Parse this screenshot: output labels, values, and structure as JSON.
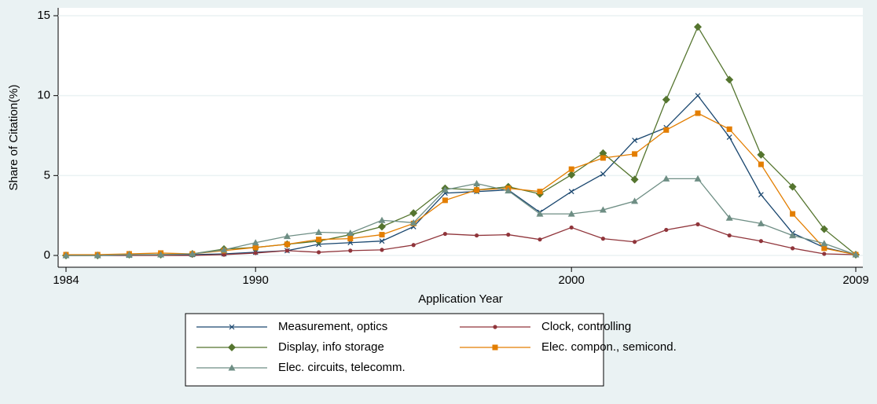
{
  "chart_data": {
    "type": "line",
    "x_label": "Application Year",
    "y_label": "Share of Citation(%)",
    "x": [
      1984,
      1985,
      1986,
      1987,
      1988,
      1989,
      1990,
      1991,
      1992,
      1993,
      1994,
      1995,
      1996,
      1997,
      1998,
      1999,
      2000,
      2001,
      2002,
      2003,
      2004,
      2005,
      2006,
      2007,
      2008,
      2009
    ],
    "xlim": [
      1984,
      2009
    ],
    "xticks": [
      1984,
      1990,
      2000,
      2009
    ],
    "ylim": [
      0,
      15
    ],
    "yticks": [
      0,
      5,
      10,
      15
    ],
    "grid": true,
    "series": [
      {
        "name": "Measurement, optics",
        "color": "#1a476f",
        "marker": "x",
        "values": [
          0,
          0,
          0,
          0.05,
          0.05,
          0.1,
          0.2,
          0.3,
          0.7,
          0.8,
          0.9,
          1.8,
          3.9,
          4.0,
          4.1,
          2.7,
          4.0,
          5.1,
          7.2,
          8.0,
          10.0,
          7.4,
          3.8,
          1.4,
          0.5,
          0.05
        ]
      },
      {
        "name": "Clock, controlling",
        "color": "#90353b",
        "marker": "circle",
        "values": [
          0,
          0,
          0,
          0,
          0,
          0.05,
          0.15,
          0.3,
          0.2,
          0.3,
          0.35,
          0.65,
          1.35,
          1.25,
          1.3,
          1.0,
          1.75,
          1.05,
          0.85,
          1.6,
          1.95,
          1.25,
          0.9,
          0.45,
          0.1,
          0.05
        ]
      },
      {
        "name": "Display, info storage",
        "color": "#55752f",
        "marker": "diamond",
        "values": [
          0,
          0,
          0.05,
          0.05,
          0.1,
          0.4,
          0.5,
          0.7,
          0.9,
          1.3,
          1.8,
          2.65,
          4.2,
          4.1,
          4.3,
          3.85,
          5.05,
          6.4,
          4.75,
          9.75,
          14.3,
          11.0,
          6.3,
          4.3,
          1.65,
          0.05
        ]
      },
      {
        "name": "Elec. compon., semicond.",
        "color": "#e37e00",
        "marker": "square",
        "values": [
          0.05,
          0.05,
          0.1,
          0.15,
          0.1,
          0.3,
          0.5,
          0.7,
          1.0,
          1.05,
          1.3,
          2.0,
          3.45,
          4.1,
          4.2,
          4.0,
          5.4,
          6.1,
          6.35,
          7.85,
          8.9,
          7.9,
          5.7,
          2.6,
          0.45,
          0.05
        ]
      },
      {
        "name": "Elec. circuits, telecomm.",
        "color": "#6e8e84",
        "marker": "triangle",
        "values": [
          0,
          0,
          0.05,
          0.05,
          0.1,
          0.35,
          0.8,
          1.2,
          1.45,
          1.4,
          2.2,
          2.05,
          4.1,
          4.5,
          4.05,
          2.6,
          2.6,
          2.85,
          3.4,
          4.8,
          4.8,
          2.35,
          2.0,
          1.25,
          0.75,
          0.05
        ]
      }
    ]
  }
}
